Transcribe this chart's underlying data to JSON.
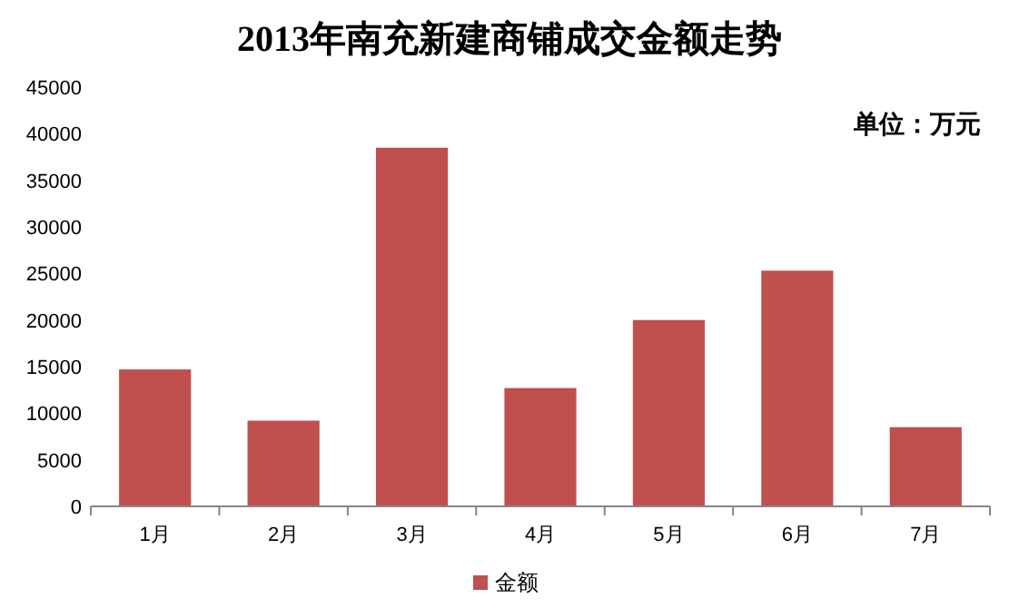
{
  "chart_data": {
    "type": "bar",
    "title": "2013年南充新建商铺成交金额走势",
    "annotations": [
      "单位：万元"
    ],
    "categories": [
      "1月",
      "2月",
      "3月",
      "4月",
      "5月",
      "6月",
      "7月"
    ],
    "series": [
      {
        "name": "金额",
        "color": "#c0504d",
        "values": [
          14700,
          9200,
          38500,
          12700,
          20000,
          25300,
          8500
        ]
      }
    ],
    "ylim": [
      0,
      45000
    ],
    "yticks": [
      0,
      5000,
      10000,
      15000,
      20000,
      25000,
      30000,
      35000,
      40000,
      45000
    ],
    "grid": false,
    "legend": "bottom"
  }
}
